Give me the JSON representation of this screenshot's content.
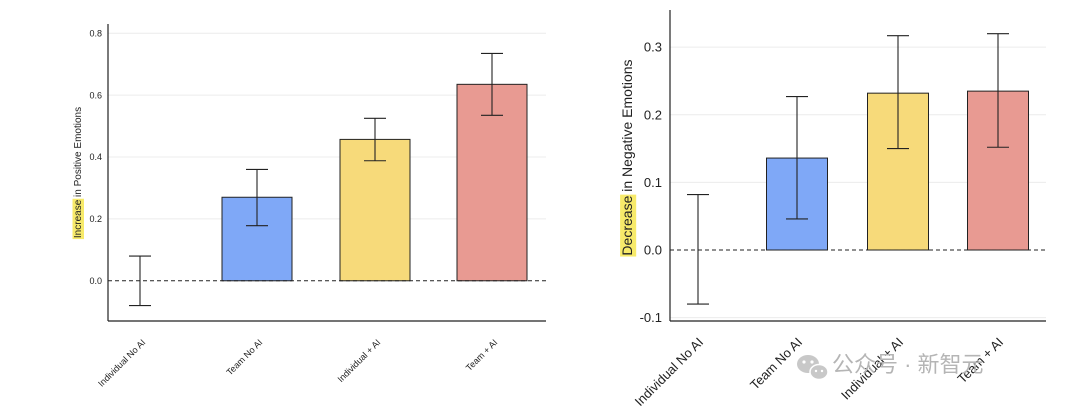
{
  "colors": {
    "individual_no_ai": "none",
    "team_no_ai": "#7fa8f7",
    "individual_ai": "#f7da7a",
    "team_ai": "#e89a92",
    "highlight": "#f7ea6a"
  },
  "chart_data": [
    {
      "type": "bar",
      "title": "",
      "xlabel": "",
      "ylabel_highlight": "Increase",
      "ylabel_rest": " in Positive Emotions",
      "categories": [
        "Individual No AI",
        "Team No AI",
        "Individual + AI",
        "Team + AI"
      ],
      "values": [
        0.0,
        0.27,
        0.457,
        0.635
      ],
      "error_low": [
        -0.08,
        0.178,
        0.388,
        0.535
      ],
      "error_high": [
        0.08,
        0.36,
        0.525,
        0.735
      ],
      "ylim": [
        -0.13,
        0.83
      ],
      "yticks": [
        "0.0",
        "0.2",
        "0.4",
        "0.6",
        "0.8"
      ],
      "ytick_values": [
        0.0,
        0.2,
        0.4,
        0.6,
        0.8
      ],
      "grid": true,
      "baseline": "dashed"
    },
    {
      "type": "bar",
      "title": "",
      "xlabel": "",
      "ylabel_highlight": "Decrease",
      "ylabel_rest": " in Negative Emotions",
      "categories": [
        "Individual No AI",
        "Team No AI",
        "Individual + AI",
        "Team + AI"
      ],
      "values": [
        0.0,
        0.136,
        0.232,
        0.235
      ],
      "error_low": [
        -0.08,
        0.046,
        0.15,
        0.152
      ],
      "error_high": [
        0.082,
        0.227,
        0.317,
        0.32
      ],
      "ylim": [
        -0.105,
        0.355
      ],
      "yticks": [
        "-0.1",
        "0.0",
        "0.1",
        "0.2",
        "0.3"
      ],
      "ytick_values": [
        -0.1,
        0.0,
        0.1,
        0.2,
        0.3
      ],
      "grid": true,
      "baseline": "dashed"
    }
  ],
  "watermark": {
    "icon": "wechat-icon",
    "text": "公众号 · 新智元"
  }
}
